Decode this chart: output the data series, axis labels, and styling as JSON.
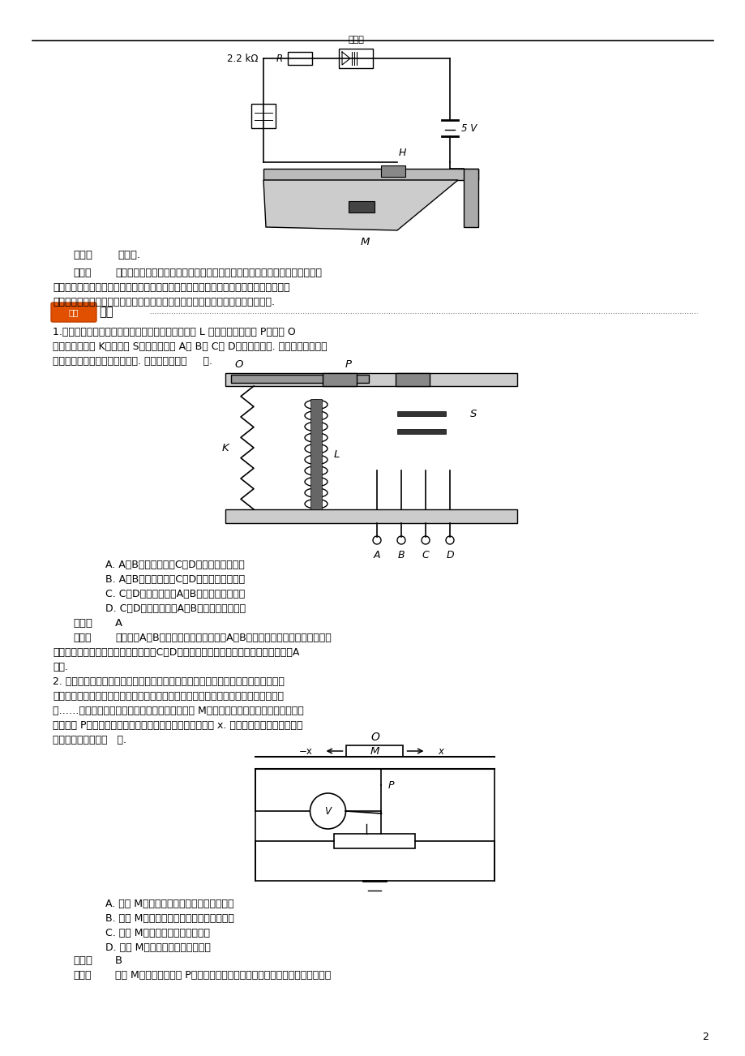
{
  "bg_color": "#ffffff",
  "page_width": 9.2,
  "page_height": 13.02,
  "answer_label": "答案：",
  "answer_text": "见解析.",
  "analysis_label": "解析：",
  "analysis_text1": "当门闭着时，永磁体使干簧管接通，斯密特触发器输入端与电源负极相连，处",
  "analysis_text2": "于低电平，则输出端为高电平，故蜂鸣器不发声；当开门时，没有永磁体作用，干簧管不",
  "analysis_text3": "通，斯密特触发器输入端为高电平，则输出端为低电平，则蜂鸣器通电，发声报警.",
  "section_label": "当堂检测",
  "q1_text1": "1.如下图所示为小型电磁继电器的构造示意图，其中 L 为含铁芯的线圈， P为可绕 O",
  "q1_text2": "点转动的铁片， K为弹簧， S为一对触头， A、 B、 C、 D为四个接线柱. 电磁继电器与传感",
  "q1_text3": "器配合，可完成自动控制的要求. 其工作方式是（     ）.",
  "q1_optA": "A. A与B接信号电压，C与D可跟被控电路串联",
  "q1_optB": "B. A与B接信号电压，C与D可跟被控电路并联",
  "q1_optC": "C. C与D接信号电压，A与B可跟被控电路串联",
  "q1_optD": "D. C与D接信号电压，A与B可跟被控电路并联",
  "q1_ans_bold": "答案：",
  "q1_ans_text": "A",
  "q1_ana_bold": "解析：",
  "q1_ana1": "由图可知A、B是电磁继电器线圈，所以A、B应接信号电压，线圈随信号电压",
  "q1_ana2": "变化使电磁继电器相吸或排斥，从而使C、D接通或断开，进而起到控制作用，所以选项A",
  "q1_ana3": "正确.",
  "q2_text1": "2. 传感器可将非电学量转化为电学量，起自动控制作用，如计算机鼠标中有位移传感",
  "q2_text2": "器，电熨斗、电饭煌中有温度传感器，电视机、录像机、影磹机、空调机中有光电传感",
  "q2_text3": "器……演示位移传感器的工作原理如图所示，物体 M在导轨上平移时，带动滑动变阶器的",
  "q2_text4": "金属滑杆 P，通过电压表显示的数据来反映物体位移的大小 x. 假设电压表是理想的，则下",
  "q2_text5": "列说法中正确的是（   ）.",
  "q2_optA": "A. 物体 M运动时，电源内的电流会发生变化",
  "q2_optB": "B. 物体 M运动时，电压表的示数会发生变化",
  "q2_optC": "C. 物体 M不动时，电路中没有电流",
  "q2_optD": "D. 物体 M不动时，电压表没有示数",
  "q2_ans_bold": "答案：",
  "q2_ans_text": "B",
  "q2_ana_bold": "解析：",
  "q2_ana": "物体 M运动时会使滑片 P左右移动，由于电压表的示数为变阶器左侧部分的电",
  "page_num": "2"
}
